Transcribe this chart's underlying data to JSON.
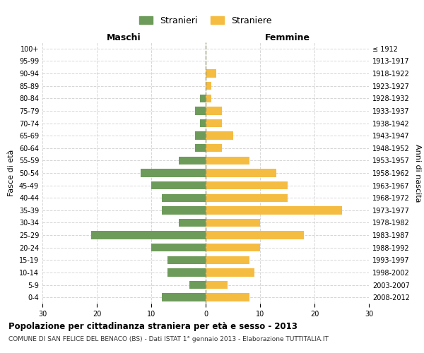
{
  "age_groups": [
    "100+",
    "95-99",
    "90-94",
    "85-89",
    "80-84",
    "75-79",
    "70-74",
    "65-69",
    "60-64",
    "55-59",
    "50-54",
    "45-49",
    "40-44",
    "35-39",
    "30-34",
    "25-29",
    "20-24",
    "15-19",
    "10-14",
    "5-9",
    "0-4"
  ],
  "birth_years": [
    "≤ 1912",
    "1913-1917",
    "1918-1922",
    "1923-1927",
    "1928-1932",
    "1933-1937",
    "1938-1942",
    "1943-1947",
    "1948-1952",
    "1953-1957",
    "1958-1962",
    "1963-1967",
    "1968-1972",
    "1973-1977",
    "1978-1982",
    "1983-1987",
    "1988-1992",
    "1993-1997",
    "1998-2002",
    "2003-2007",
    "2008-2012"
  ],
  "maschi": [
    0,
    0,
    0,
    0,
    1,
    2,
    1,
    2,
    2,
    5,
    12,
    10,
    8,
    8,
    5,
    21,
    10,
    7,
    7,
    3,
    8
  ],
  "femmine": [
    0,
    0,
    2,
    1,
    1,
    3,
    3,
    5,
    3,
    8,
    13,
    15,
    15,
    25,
    10,
    18,
    10,
    8,
    9,
    4,
    8
  ],
  "color_maschi": "#6d9b5a",
  "color_femmine": "#f5bc42",
  "background_color": "#ffffff",
  "grid_color": "#cccccc",
  "title": "Popolazione per cittadinanza straniera per età e sesso - 2013",
  "subtitle": "COMUNE DI SAN FELICE DEL BENACO (BS) - Dati ISTAT 1° gennaio 2013 - Elaborazione TUTTITALIA.IT",
  "xlabel_left": "Maschi",
  "xlabel_right": "Femmine",
  "ylabel_left": "Fasce di età",
  "ylabel_right": "Anni di nascita",
  "legend_stranieri": "Stranieri",
  "legend_straniere": "Straniere",
  "xlim": 30,
  "center_line_color": "#999977"
}
